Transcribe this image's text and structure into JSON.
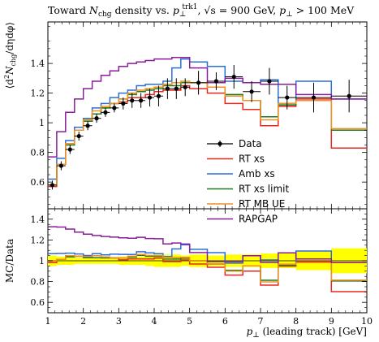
{
  "chart_data": {
    "type": "line",
    "title": "Toward N_chg density vs. p_⊥^trk1, √s = 900 GeV, p_⊥ > 100 MeV",
    "title_parts": {
      "pre": "Toward ",
      "N": "N",
      "chg": "chg",
      "mid1": " density vs. ",
      "p": "p",
      "perp": "⊥",
      "trk": "trk1",
      "mid2": ", √s = 900 GeV, ",
      "p2": "p",
      "perp2": "⊥",
      "post": " > 100 MeV"
    },
    "xlabel": "p_⊥ (leading track) [GeV]",
    "xlabel_parts": {
      "p": "p",
      "perp": "⊥",
      "rest": " (leading track) [GeV]"
    },
    "ylabel_main": "⟨d²N_chg/dηdφ⟩",
    "ylabel_main_parts": {
      "open": "⟨d",
      "sq": "2",
      "N": "N",
      "chg": "chg",
      "rest": "/dηdφ⟩"
    },
    "ylabel_ratio": "MC/Data",
    "xlim": [
      1,
      10
    ],
    "ylim_main": [
      0.42,
      1.68
    ],
    "ylim_ratio": [
      0.5,
      1.5
    ],
    "x_ticks": [
      1,
      2,
      3,
      4,
      5,
      6,
      7,
      8,
      9,
      10
    ],
    "x_tick_labels": [
      "1",
      "2",
      "3",
      "4",
      "5",
      "6",
      "7",
      "8",
      "9",
      "10"
    ],
    "y_ticks_main": [
      0.6,
      0.8,
      1.0,
      1.2,
      1.4
    ],
    "y_tick_labels_main": [
      "0.6",
      "0.8",
      "1",
      "1.2",
      "1.4"
    ],
    "y_ticks_ratio": [
      0.6,
      0.8,
      1.0,
      1.2,
      1.4
    ],
    "y_tick_labels_ratio": [
      "0.6",
      "0.8",
      "1",
      "1.2",
      "1.4"
    ],
    "x_edges": [
      1.0,
      1.25,
      1.5,
      1.75,
      2.0,
      2.25,
      2.5,
      2.75,
      3.0,
      3.25,
      3.5,
      3.75,
      4.0,
      4.25,
      4.5,
      4.75,
      5.0,
      5.5,
      6.0,
      6.5,
      7.0,
      7.5,
      8.0,
      9.0,
      10.0
    ],
    "data": {
      "name": "Data",
      "color": "#000000",
      "x": [
        1.125,
        1.375,
        1.625,
        1.875,
        2.125,
        2.375,
        2.625,
        2.875,
        3.125,
        3.375,
        3.625,
        3.875,
        4.125,
        4.375,
        4.625,
        4.875,
        5.25,
        5.75,
        6.25,
        6.75,
        7.25,
        7.75,
        8.5,
        9.5
      ],
      "y": [
        0.58,
        0.71,
        0.82,
        0.91,
        0.98,
        1.03,
        1.07,
        1.1,
        1.13,
        1.15,
        1.15,
        1.17,
        1.18,
        1.23,
        1.23,
        1.24,
        1.27,
        1.28,
        1.31,
        1.21,
        1.28,
        1.17,
        1.17,
        1.18
      ],
      "err": [
        0.03,
        0.03,
        0.03,
        0.03,
        0.03,
        0.03,
        0.03,
        0.03,
        0.04,
        0.05,
        0.05,
        0.06,
        0.07,
        0.07,
        0.07,
        0.06,
        0.08,
        0.06,
        0.08,
        0.07,
        0.09,
        0.08,
        0.1,
        0.11
      ]
    },
    "series": [
      {
        "name": "RT xs",
        "color": "#e8281e",
        "values": [
          0.57,
          0.72,
          0.86,
          0.95,
          1.01,
          1.06,
          1.1,
          1.13,
          1.14,
          1.17,
          1.17,
          1.19,
          1.21,
          1.22,
          1.22,
          1.25,
          1.23,
          1.2,
          1.13,
          1.09,
          0.98,
          1.11,
          1.16,
          0.83
        ]
      },
      {
        "name": "Amb xs",
        "color": "#2a6fd8",
        "values": [
          0.62,
          0.76,
          0.88,
          0.97,
          1.03,
          1.1,
          1.13,
          1.17,
          1.2,
          1.22,
          1.25,
          1.26,
          1.26,
          1.28,
          1.37,
          1.43,
          1.41,
          1.38,
          1.28,
          1.27,
          1.29,
          1.13,
          1.28,
          1.16
        ]
      },
      {
        "name": "RT xs limit",
        "color": "#1e7a1e",
        "values": [
          0.58,
          0.72,
          0.85,
          0.95,
          1.01,
          1.06,
          1.1,
          1.13,
          1.16,
          1.19,
          1.21,
          1.22,
          1.23,
          1.25,
          1.25,
          1.27,
          1.27,
          1.24,
          1.19,
          1.15,
          1.04,
          1.12,
          1.15,
          0.95
        ]
      },
      {
        "name": "RT MB UE",
        "color": "#f09020",
        "values": [
          0.58,
          0.72,
          0.86,
          0.95,
          1.02,
          1.08,
          1.11,
          1.13,
          1.16,
          1.2,
          1.22,
          1.23,
          1.24,
          1.26,
          1.27,
          1.28,
          1.27,
          1.24,
          1.18,
          1.15,
          1.02,
          1.13,
          1.15,
          0.96
        ]
      },
      {
        "name": "RAPGAP",
        "color": "#8a1e9a",
        "values": [
          0.77,
          0.94,
          1.07,
          1.16,
          1.23,
          1.28,
          1.32,
          1.35,
          1.38,
          1.4,
          1.41,
          1.42,
          1.43,
          1.43,
          1.44,
          1.44,
          1.37,
          1.27,
          1.3,
          1.27,
          1.26,
          1.26,
          1.19,
          1.16
        ]
      }
    ],
    "ratio_band": {
      "x_edges": [
        1.0,
        1.25,
        1.5,
        1.75,
        2.0,
        2.25,
        2.5,
        2.75,
        3.0,
        3.25,
        3.5,
        3.75,
        4.0,
        4.25,
        4.5,
        4.75,
        5.0,
        5.5,
        6.0,
        6.5,
        7.0,
        7.5,
        8.0,
        9.0,
        10.0
      ],
      "half_width": [
        0.05,
        0.04,
        0.04,
        0.03,
        0.03,
        0.03,
        0.03,
        0.03,
        0.04,
        0.04,
        0.04,
        0.05,
        0.06,
        0.06,
        0.06,
        0.05,
        0.06,
        0.05,
        0.06,
        0.06,
        0.07,
        0.07,
        0.09,
        0.12
      ],
      "color": "#ffff00"
    },
    "legend": {
      "placement": "center-right",
      "entries": [
        "Data",
        "RT xs",
        "Amb xs",
        "RT xs limit",
        "RT MB UE",
        "RAPGAP"
      ]
    }
  }
}
